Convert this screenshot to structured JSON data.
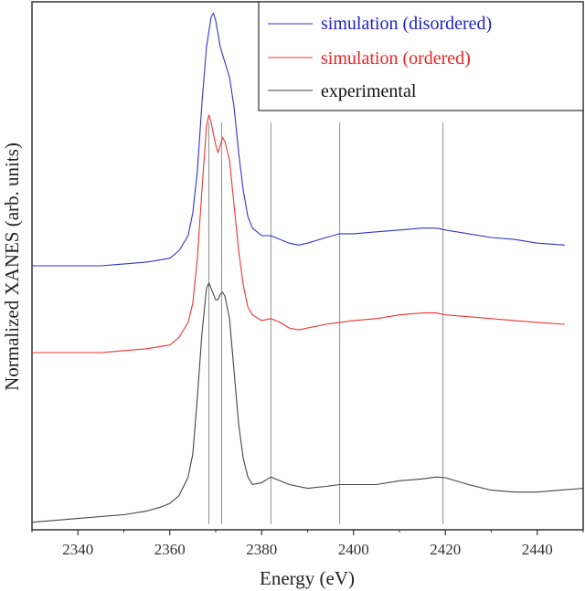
{
  "chart_data": {
    "type": "line",
    "title": "",
    "xlabel": "Energy (eV)",
    "ylabel": "Normalized XANES (arb. units)",
    "xlim": [
      2330,
      2450
    ],
    "ylim": [
      0,
      1.4
    ],
    "xticks": [
      2340,
      2360,
      2380,
      2400,
      2420,
      2440
    ],
    "yticks_labeled": false,
    "grid": false,
    "legend_position": "top-right",
    "vertical_markers": [
      2368.5,
      2371.3,
      2382,
      2397,
      2419.5
    ],
    "series": [
      {
        "name": "simulation (disordered)",
        "color": "#3333cc",
        "points": [
          [
            2330,
            0.7
          ],
          [
            2345,
            0.7
          ],
          [
            2355,
            0.71
          ],
          [
            2360,
            0.72
          ],
          [
            2362,
            0.74
          ],
          [
            2364,
            0.78
          ],
          [
            2365,
            0.84
          ],
          [
            2366,
            0.95
          ],
          [
            2367,
            1.13
          ],
          [
            2368,
            1.28
          ],
          [
            2369,
            1.36
          ],
          [
            2369.5,
            1.37
          ],
          [
            2370,
            1.35
          ],
          [
            2371,
            1.28
          ],
          [
            2372,
            1.24
          ],
          [
            2373,
            1.2
          ],
          [
            2374,
            1.12
          ],
          [
            2375,
            1.0
          ],
          [
            2376,
            0.9
          ],
          [
            2377,
            0.83
          ],
          [
            2378,
            0.8
          ],
          [
            2380,
            0.78
          ],
          [
            2382,
            0.78
          ],
          [
            2384,
            0.77
          ],
          [
            2386,
            0.76
          ],
          [
            2388,
            0.755
          ],
          [
            2390,
            0.76
          ],
          [
            2394,
            0.775
          ],
          [
            2397,
            0.785
          ],
          [
            2400,
            0.785
          ],
          [
            2405,
            0.79
          ],
          [
            2410,
            0.795
          ],
          [
            2415,
            0.8
          ],
          [
            2418,
            0.8
          ],
          [
            2420,
            0.795
          ],
          [
            2425,
            0.785
          ],
          [
            2430,
            0.775
          ],
          [
            2435,
            0.77
          ],
          [
            2440,
            0.76
          ],
          [
            2446,
            0.755
          ]
        ]
      },
      {
        "name": "simulation (ordered)",
        "color": "#ee3333",
        "points": [
          [
            2330,
            0.47
          ],
          [
            2345,
            0.47
          ],
          [
            2355,
            0.48
          ],
          [
            2360,
            0.49
          ],
          [
            2362,
            0.51
          ],
          [
            2364,
            0.55
          ],
          [
            2365,
            0.6
          ],
          [
            2366,
            0.72
          ],
          [
            2367,
            0.9
          ],
          [
            2368,
            1.07
          ],
          [
            2368.5,
            1.1
          ],
          [
            2369,
            1.08
          ],
          [
            2370,
            1.02
          ],
          [
            2370.5,
            1.0
          ],
          [
            2371,
            1.02
          ],
          [
            2371.5,
            1.04
          ],
          [
            2372,
            1.03
          ],
          [
            2373,
            0.98
          ],
          [
            2374,
            0.86
          ],
          [
            2375,
            0.74
          ],
          [
            2376,
            0.65
          ],
          [
            2377,
            0.59
          ],
          [
            2378,
            0.57
          ],
          [
            2380,
            0.555
          ],
          [
            2382,
            0.56
          ],
          [
            2384,
            0.55
          ],
          [
            2386,
            0.535
          ],
          [
            2388,
            0.53
          ],
          [
            2390,
            0.535
          ],
          [
            2394,
            0.545
          ],
          [
            2397,
            0.55
          ],
          [
            2400,
            0.555
          ],
          [
            2405,
            0.56
          ],
          [
            2410,
            0.57
          ],
          [
            2415,
            0.575
          ],
          [
            2418,
            0.575
          ],
          [
            2420,
            0.57
          ],
          [
            2425,
            0.565
          ],
          [
            2430,
            0.56
          ],
          [
            2435,
            0.555
          ],
          [
            2440,
            0.55
          ],
          [
            2446,
            0.545
          ]
        ]
      },
      {
        "name": "experimental",
        "color": "#444444",
        "points": [
          [
            2330,
            0.02
          ],
          [
            2335,
            0.025
          ],
          [
            2340,
            0.03
          ],
          [
            2345,
            0.035
          ],
          [
            2350,
            0.04
          ],
          [
            2355,
            0.05
          ],
          [
            2358,
            0.06
          ],
          [
            2360,
            0.07
          ],
          [
            2362,
            0.09
          ],
          [
            2364,
            0.14
          ],
          [
            2365,
            0.2
          ],
          [
            2366,
            0.35
          ],
          [
            2367,
            0.52
          ],
          [
            2368,
            0.64
          ],
          [
            2368.5,
            0.655
          ],
          [
            2369,
            0.64
          ],
          [
            2370,
            0.61
          ],
          [
            2370.5,
            0.61
          ],
          [
            2371,
            0.625
          ],
          [
            2371.5,
            0.63
          ],
          [
            2372,
            0.62
          ],
          [
            2373,
            0.56
          ],
          [
            2374,
            0.42
          ],
          [
            2375,
            0.28
          ],
          [
            2376,
            0.19
          ],
          [
            2377,
            0.14
          ],
          [
            2378,
            0.12
          ],
          [
            2380,
            0.125
          ],
          [
            2382,
            0.14
          ],
          [
            2383,
            0.135
          ],
          [
            2386,
            0.12
          ],
          [
            2390,
            0.11
          ],
          [
            2394,
            0.115
          ],
          [
            2397,
            0.12
          ],
          [
            2400,
            0.12
          ],
          [
            2405,
            0.12
          ],
          [
            2410,
            0.13
          ],
          [
            2415,
            0.135
          ],
          [
            2418,
            0.14
          ],
          [
            2420,
            0.138
          ],
          [
            2425,
            0.12
          ],
          [
            2430,
            0.105
          ],
          [
            2435,
            0.1
          ],
          [
            2440,
            0.1
          ],
          [
            2445,
            0.105
          ],
          [
            2450,
            0.11
          ]
        ]
      }
    ]
  }
}
